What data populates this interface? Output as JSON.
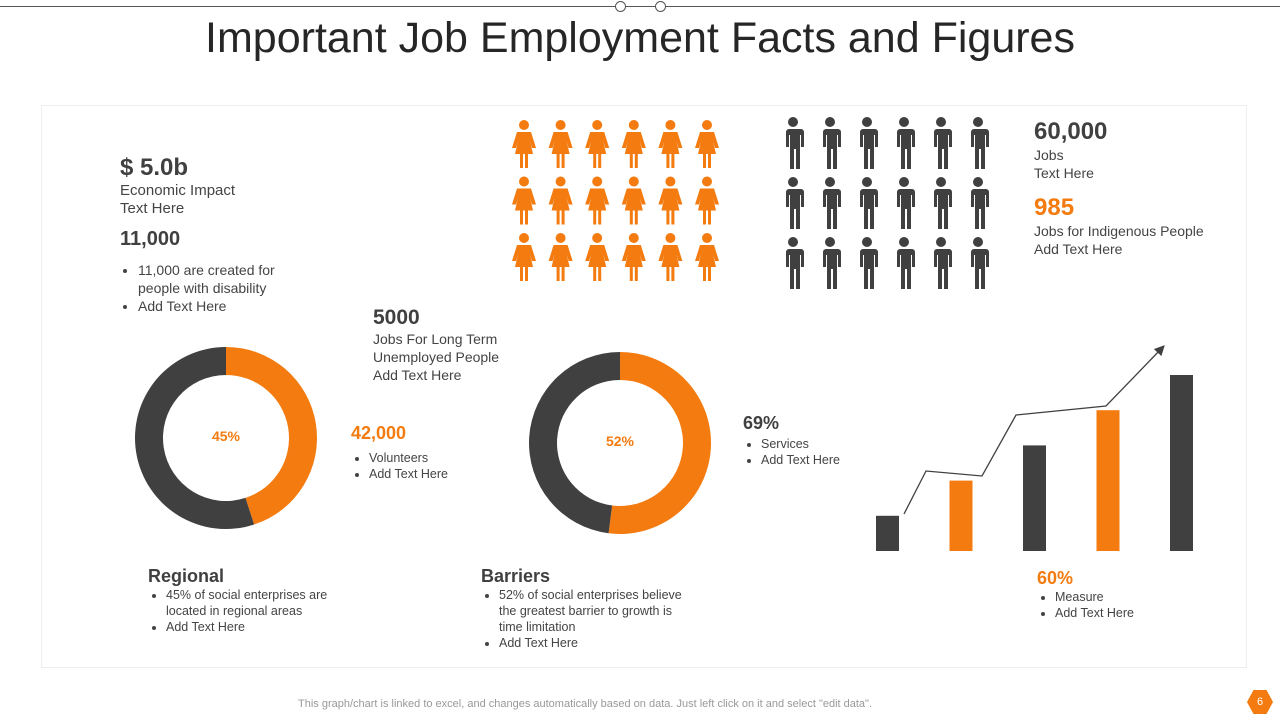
{
  "title": "Important Job Employment Facts and Figures",
  "colors": {
    "accent": "#f47b0f",
    "dark": "#404040"
  },
  "economic": {
    "value": "$ 5.0b",
    "line1": "Economic Impact",
    "line2": "Text Here"
  },
  "disability": {
    "value": "11,000",
    "bullets": [
      "11,000 are created for people with disability",
      "Add Text Here"
    ]
  },
  "longterm": {
    "value": "5000",
    "line1": "Jobs For Long Term",
    "line2": "Unemployed People",
    "line3": "Add Text Here"
  },
  "jobs": {
    "value": "60,000",
    "line1": "Jobs",
    "line2": "Text Here"
  },
  "indigenous": {
    "value": "985",
    "line1": "Jobs for Indigenous People",
    "line2": "Add Text Here"
  },
  "volunteers": {
    "value": "42,000",
    "bullets": [
      "Volunteers",
      "Add Text Here"
    ]
  },
  "services": {
    "value": "69%",
    "bullets": [
      "Services",
      "Add Text Here"
    ]
  },
  "measure": {
    "value": "60%",
    "bullets": [
      "Measure",
      "Add Text Here"
    ]
  },
  "regional": {
    "heading": "Regional",
    "bullets": [
      "45% of social enterprises are located in regional areas",
      "Add Text Here"
    ]
  },
  "barriers": {
    "heading": "Barriers",
    "bullets": [
      "52% of social enterprises believe the greatest barrier to growth is time limitation",
      "Add Text Here"
    ]
  },
  "footer": "This graph/chart is linked to excel, and changes automatically based on data. Just left click on it and select \"edit data\".",
  "page_number": "6",
  "icons": {
    "female": "female-person-icon",
    "male": "male-person-icon",
    "female_count": 18,
    "male_count": 18
  },
  "chart_data": [
    {
      "type": "pie",
      "donut": true,
      "label": "45%",
      "values": [
        45,
        55
      ],
      "colors": [
        "#f47b0f",
        "#404040"
      ]
    },
    {
      "type": "pie",
      "donut": true,
      "label": "52%",
      "values": [
        52,
        48
      ],
      "colors": [
        "#f47b0f",
        "#404040"
      ]
    },
    {
      "type": "bar",
      "values": [
        1,
        2,
        3,
        4,
        5
      ],
      "colors": [
        "#404040",
        "#f47b0f",
        "#404040",
        "#f47b0f",
        "#404040"
      ],
      "trend_arrow": true
    }
  ]
}
